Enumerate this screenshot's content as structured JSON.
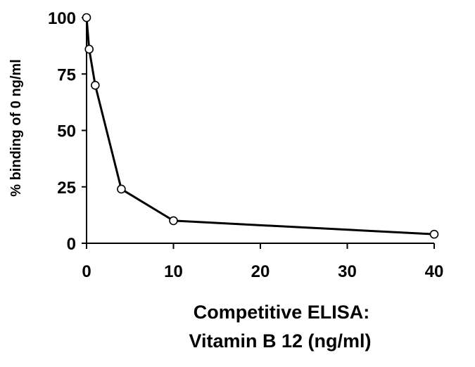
{
  "chart_data": {
    "type": "line",
    "title": "",
    "xlabel_lines": [
      "Competitive ELISA:",
      "Vitamin B 12  (ng/ml)"
    ],
    "ylabel": "% binding of 0 ng/ml",
    "xlim": [
      0,
      40
    ],
    "ylim": [
      0,
      100
    ],
    "xticks": [
      0,
      10,
      20,
      30,
      40
    ],
    "yticks": [
      0,
      25,
      50,
      75,
      100
    ],
    "x_tick_labels": [
      "0",
      "10",
      "20",
      "30",
      "40"
    ],
    "y_tick_labels": [
      "0",
      "25",
      "50",
      "75",
      "100"
    ],
    "grid": false,
    "legend": "none",
    "series": [
      {
        "x": [
          0,
          0.3,
          1,
          4,
          10,
          40
        ],
        "y": [
          100,
          86,
          70,
          24,
          10,
          4
        ],
        "line_color": "#000000",
        "marker": "open-circle"
      }
    ]
  }
}
